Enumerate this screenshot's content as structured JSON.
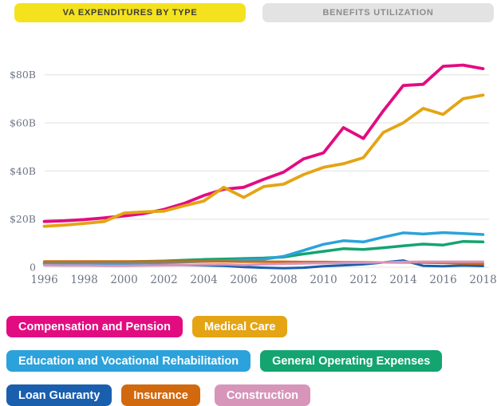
{
  "tabs": {
    "expenditures": {
      "label": "VA EXPENDITURES BY TYPE"
    },
    "utilization": {
      "label": "BENEFITS UTILIZATION"
    }
  },
  "colors": {
    "active_tab_bg": "#f4e21e",
    "active_tab_text": "#3c3c33",
    "inactive_tab_bg": "#e3e3e3",
    "inactive_tab_text": "#8b8b8b",
    "grid_line": "#e8e8e8",
    "axis_text": "#6d7584",
    "background": "#ffffff"
  },
  "chart_data": {
    "type": "line",
    "unit": "USD billions",
    "grid": "horizontal",
    "legend_position": "bottom",
    "x": [
      1996,
      1997,
      1998,
      1999,
      2000,
      2001,
      2002,
      2003,
      2004,
      2005,
      2006,
      2007,
      2008,
      2009,
      2010,
      2011,
      2012,
      2013,
      2014,
      2015,
      2016,
      2017,
      2018
    ],
    "x_tick_labels": [
      "1996",
      "1998",
      "2000",
      "2002",
      "2004",
      "2006",
      "2008",
      "2010",
      "2012",
      "2014",
      "2016",
      "2018"
    ],
    "y_tick_values": [
      0,
      20,
      40,
      60,
      80
    ],
    "y_tick_labels": [
      "0",
      "$20B",
      "$40B",
      "$60B",
      "$80B"
    ],
    "ylim": [
      -2,
      88
    ],
    "xlabel": "",
    "ylabel": "",
    "draw_order": [
      4,
      3,
      2,
      5,
      6,
      0,
      1
    ],
    "series": [
      {
        "name": "Compensation and Pension",
        "color": "#e20c81",
        "line_width": 3.8,
        "values": [
          19,
          19.3,
          19.8,
          20.5,
          21.3,
          22.3,
          24,
          26.5,
          29.8,
          32.4,
          33.2,
          36.5,
          39.5,
          45,
          47.5,
          58,
          53.5,
          65,
          75.5,
          76,
          83.5,
          84,
          82.5
        ]
      },
      {
        "name": "Medical Care",
        "color": "#e4a414",
        "line_width": 3.8,
        "values": [
          17,
          17.5,
          18.2,
          19,
          22.5,
          23,
          23.3,
          25.5,
          27.5,
          33.2,
          29,
          33.5,
          34.5,
          38.5,
          41.5,
          43,
          45.5,
          56,
          60,
          66,
          63.5,
          70,
          71.5
        ]
      },
      {
        "name": "Education and Vocational Rehabilitation",
        "color": "#2ba2dc",
        "line_width": 3.5,
        "values": [
          1.3,
          1.3,
          1.4,
          1.4,
          1.5,
          1.7,
          2,
          2.2,
          2.4,
          2.7,
          3,
          3.3,
          4.5,
          7,
          9.5,
          11,
          10.5,
          12.5,
          14.3,
          13.8,
          14.4,
          14,
          13.6
        ]
      },
      {
        "name": "General Operating Expenses",
        "color": "#14a470",
        "line_width": 3.5,
        "values": [
          1.8,
          1.9,
          2,
          2.1,
          2.2,
          2.4,
          2.6,
          2.9,
          3.2,
          3.4,
          3.6,
          3.8,
          4.2,
          5.5,
          6.6,
          7.7,
          7.4,
          8.1,
          8.9,
          9.6,
          9.2,
          10.7,
          10.5
        ]
      },
      {
        "name": "Loan Guaranty",
        "color": "#1a5fae",
        "line_width": 3,
        "values": [
          1.2,
          1.1,
          1.1,
          1.2,
          1.1,
          1,
          0.9,
          0.9,
          0.8,
          0.6,
          0.1,
          -0.2,
          -0.4,
          -0.2,
          0.4,
          0.8,
          1.2,
          2,
          2.8,
          0.6,
          0.4,
          0.7,
          0.5
        ]
      },
      {
        "name": "Insurance",
        "color": "#d2690e",
        "line_width": 3,
        "values": [
          2.4,
          2.4,
          2.4,
          2.4,
          2.4,
          2.4,
          2.4,
          2.4,
          2.4,
          2.4,
          2.3,
          2.3,
          2.3,
          2.2,
          2.2,
          2.1,
          2.1,
          2,
          2,
          1.9,
          1.8,
          1.6,
          1.4
        ]
      },
      {
        "name": "Construction",
        "color": "#d795ba",
        "line_width": 3,
        "values": [
          0.8,
          0.7,
          0.7,
          0.6,
          0.6,
          0.7,
          0.8,
          0.9,
          1.1,
          1.2,
          0.9,
          1.2,
          1.4,
          1.6,
          1.7,
          1.8,
          1.9,
          2,
          2.2,
          2.3,
          2.3,
          2.3,
          2.3
        ]
      }
    ]
  }
}
